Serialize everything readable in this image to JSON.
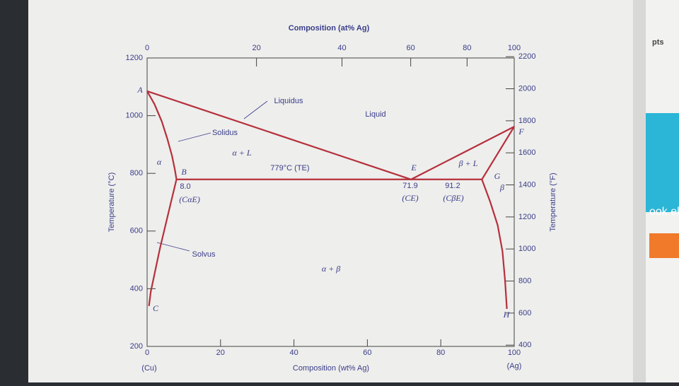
{
  "chart_data": {
    "type": "line",
    "x_label": "Composition (wt% Ag)",
    "x2_label": "Composition (at% Ag)",
    "y_label": "Temperature (°C)",
    "y2_label": "Temperature (°F)",
    "xlim": [
      0,
      100
    ],
    "xticks": [
      0,
      20,
      40,
      60,
      80,
      100
    ],
    "x2ticks": [
      0,
      20,
      40,
      60,
      80,
      100
    ],
    "ylim": [
      200,
      1200
    ],
    "yticks": [
      200,
      400,
      600,
      800,
      1000,
      1200
    ],
    "y2lim": [
      392,
      2192
    ],
    "y2ticks": [
      400,
      600,
      800,
      1000,
      1200,
      1400,
      1600,
      1800,
      2000,
      2200
    ],
    "color": "#b5303c",
    "series": [
      {
        "x": [
          0,
          71.9,
          100
        ],
        "values": [
          1085,
          779,
          962
        ]
      },
      {
        "x": [
          0,
          2,
          4,
          5.5,
          6.8,
          7.6,
          8
        ],
        "values": [
          1085,
          1040,
          980,
          920,
          860,
          810,
          779
        ]
      },
      {
        "x": [
          8,
          6.5,
          5,
          3.5,
          2,
          1,
          0.5
        ],
        "values": [
          779,
          700,
          620,
          540,
          450,
          390,
          340
        ]
      },
      {
        "x": [
          8,
          91.2
        ],
        "values": [
          779,
          779
        ]
      },
      {
        "x": [
          100,
          91.2
        ],
        "values": [
          962,
          779
        ]
      },
      {
        "x": [
          91.2,
          93.5,
          95.5,
          96.8,
          97.5,
          98
        ],
        "values": [
          779,
          700,
          620,
          530,
          430,
          330
        ]
      }
    ],
    "annotations": [
      "A",
      "B",
      "C",
      "E",
      "F",
      "G",
      "H",
      "Liquidus",
      "Solidus",
      "Solvus",
      "Liquid",
      "α",
      "α + L",
      "779°C (TE)",
      "8.0",
      "(CαE)",
      "71.9",
      "(CE)",
      "91.2",
      "(CβE)",
      "β + L",
      "β",
      "α + β",
      "(Cu)",
      "(Ag)"
    ]
  },
  "page": {
    "side_label": "pts",
    "side_banner": "ook ek"
  }
}
